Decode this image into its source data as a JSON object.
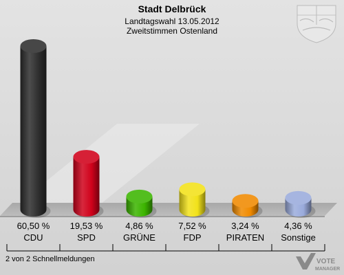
{
  "chart_data": {
    "type": "bar",
    "title": "Stadt Delbrück",
    "subtitle_line1": "Landtagswahl 13.05.2012",
    "subtitle_line2": "Zweitstimmen Ostenland",
    "categories": [
      "CDU",
      "SPD",
      "GRÜNE",
      "FDP",
      "PIRATEN",
      "Sonstige"
    ],
    "values": [
      60.5,
      19.53,
      4.86,
      7.52,
      3.24,
      4.36
    ],
    "value_labels": [
      "60,50 %",
      "19,53 %",
      "4,86 %",
      "7,52 %",
      "3,24 %",
      "4,36 %"
    ],
    "colors": [
      "#2e2e2e",
      "#d0021b",
      "#3cb500",
      "#f2e21a",
      "#f08a00",
      "#9aabdc"
    ],
    "ylim": [
      0,
      60.5
    ],
    "grid": false
  },
  "footer": {
    "note": "2 von 2 Schnellmeldungen",
    "logo_text_line1": "VOTE",
    "logo_text_line2": "MANAGER"
  },
  "emblem_icon": "nrw-coat-of-arms-icon"
}
